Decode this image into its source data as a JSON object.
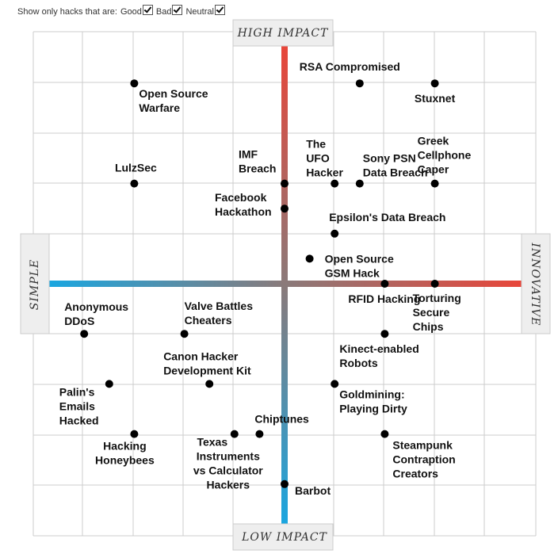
{
  "filter_bar": {
    "prompt": "Show only hacks that are:",
    "options": [
      {
        "label": "Good",
        "checked": true
      },
      {
        "label": "Bad",
        "checked": true
      },
      {
        "label": "Neutral",
        "checked": true
      }
    ]
  },
  "colors": {
    "impact_high": "#e8463a",
    "impact_low": "#1aa6e0",
    "innovative": "#e8463a",
    "simple": "#1aa6e0",
    "center": "#8a7a7a",
    "grid": "#cccccc",
    "label_box": "#eeeeee",
    "dot": "#000000"
  },
  "chart_data": {
    "type": "scatter",
    "title": "",
    "axes": {
      "top": "HIGH IMPACT",
      "bottom": "LOW IMPACT",
      "left": "SIMPLE",
      "right": "INNOVATIVE"
    },
    "xlim": [
      -5,
      5
    ],
    "ylim": [
      -5,
      5
    ],
    "grid": true,
    "points": [
      {
        "x": 3,
        "y": 4,
        "label": [
          "Stuxnet"
        ],
        "anchor": "below"
      },
      {
        "x": 1.5,
        "y": 4,
        "label": [
          "RSA Compromised"
        ],
        "anchor": "above"
      },
      {
        "x": -3,
        "y": 4,
        "label": [
          "Open Source",
          "Warfare"
        ],
        "anchor": "right"
      },
      {
        "x": -3,
        "y": 2,
        "label": [
          "LulzSec"
        ],
        "anchor": "above"
      },
      {
        "x": 0,
        "y": 2,
        "label": [
          "IMF",
          "Breach"
        ],
        "anchor": "left-above"
      },
      {
        "x": 1,
        "y": 2,
        "label": [
          "The",
          "UFO",
          "Hacker"
        ],
        "anchor": "left-above-narrow"
      },
      {
        "x": 1.5,
        "y": 2,
        "label": [
          "Sony PSN",
          "Data Breach"
        ],
        "anchor": "right-above"
      },
      {
        "x": 3,
        "y": 2,
        "label": [
          "Greek",
          "Cellphone",
          "Caper"
        ],
        "anchor": "above-left"
      },
      {
        "x": 0,
        "y": 1.5,
        "label": [
          "Facebook",
          "Hackathon"
        ],
        "anchor": "left-above"
      },
      {
        "x": 1,
        "y": 1,
        "label": [
          "Epsilon's Data Breach"
        ],
        "anchor": "right-above"
      },
      {
        "x": 0.5,
        "y": 0.5,
        "label": [
          "Open Source",
          "GSM Hack"
        ],
        "anchor": "right"
      },
      {
        "x": 2,
        "y": 0,
        "label": [
          "RFID Hacking"
        ],
        "anchor": "below"
      },
      {
        "x": 3,
        "y": 0,
        "label": [
          "Torturing",
          "Secure",
          "Chips"
        ],
        "anchor": "below"
      },
      {
        "x": -4,
        "y": -1,
        "label": [
          "Anonymous",
          "DDoS"
        ],
        "anchor": "above"
      },
      {
        "x": -2,
        "y": -1,
        "label": [
          "Valve Battles",
          "Cheaters"
        ],
        "anchor": "above"
      },
      {
        "x": 2,
        "y": -1,
        "label": [
          "Kinect-enabled",
          "Robots"
        ],
        "anchor": "below"
      },
      {
        "x": -1.5,
        "y": -2,
        "label": [
          "Canon Hacker",
          "Development Kit"
        ],
        "anchor": "above"
      },
      {
        "x": -3.5,
        "y": -2,
        "label": [
          "Palin's",
          "Emails",
          "Hacked"
        ],
        "anchor": "below-left"
      },
      {
        "x": 1,
        "y": -2,
        "label": [
          "Goldmining:",
          "Playing Dirty"
        ],
        "anchor": "right"
      },
      {
        "x": -3,
        "y": -3,
        "label": [
          "Hacking",
          "Honeybees"
        ],
        "anchor": "below"
      },
      {
        "x": -1,
        "y": -3,
        "label": [
          "Texas",
          "Instruments",
          "vs Calculator",
          "Hackers"
        ],
        "anchor": "below-left"
      },
      {
        "x": -0.5,
        "y": -3,
        "label": [
          "Chiptunes"
        ],
        "anchor": "above-right"
      },
      {
        "x": 2,
        "y": -3,
        "label": [
          "Steampunk",
          "Contraption",
          "Creators"
        ],
        "anchor": "below-right"
      },
      {
        "x": 0,
        "y": -4,
        "label": [
          "Barbot"
        ],
        "anchor": "right"
      }
    ]
  }
}
